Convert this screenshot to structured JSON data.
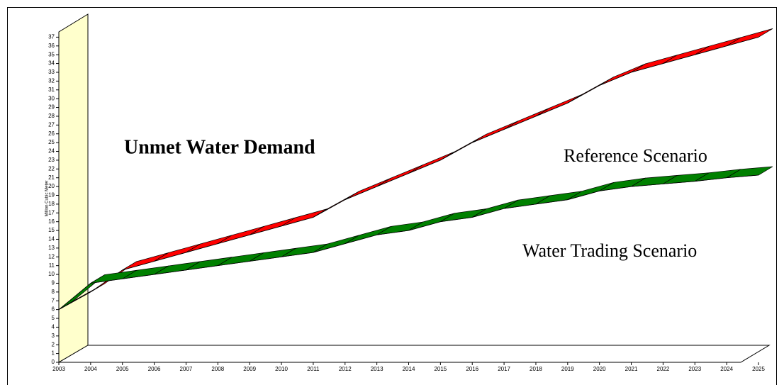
{
  "chart_data": {
    "type": "line3d",
    "title": "Unmet Water Demand",
    "y_label": "Million Cubic Meter",
    "categories": [
      "2003",
      "2004",
      "2005",
      "2006",
      "2007",
      "2008",
      "2009",
      "2010",
      "2011",
      "2012",
      "2013",
      "2014",
      "2015",
      "2016",
      "2017",
      "2018",
      "2019",
      "2020",
      "2021",
      "2022",
      "2023",
      "2024",
      "2025"
    ],
    "series": [
      {
        "name": "Reference Scenario",
        "color": "#ff0000",
        "values": [
          6,
          8,
          10.5,
          11.5,
          12.5,
          13.5,
          14.5,
          15.5,
          16.5,
          18.5,
          20,
          21.5,
          23,
          25,
          26.5,
          28,
          29.5,
          31.5,
          33,
          34,
          35,
          36,
          37
        ]
      },
      {
        "name": "Water Trading Scenario",
        "color": "#008000",
        "values": [
          6,
          9,
          9.5,
          10,
          10.5,
          11,
          11.5,
          12,
          12.5,
          13.5,
          14.5,
          15,
          16,
          16.5,
          17.5,
          18,
          18.5,
          19.5,
          20,
          20.3,
          20.6,
          21,
          21.3
        ]
      }
    ],
    "ylim": [
      0,
      38
    ],
    "yticks": [
      0,
      1,
      2,
      3,
      4,
      5,
      6,
      7,
      8,
      9,
      10,
      11,
      12,
      13,
      14,
      15,
      16,
      17,
      18,
      19,
      20,
      21,
      22,
      23,
      24,
      25,
      26,
      27,
      28,
      29,
      30,
      31,
      32,
      33,
      34,
      35,
      36,
      37
    ]
  }
}
